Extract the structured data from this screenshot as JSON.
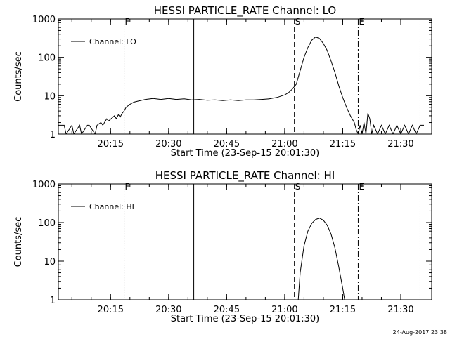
{
  "footer_stamp": "24-Aug-2017 23:38",
  "chart_data": [
    {
      "type": "line",
      "title": "HESSI PARTICLE_RATE Channel: LO",
      "xlabel": "Start Time (23-Sep-15 20:01:30)",
      "ylabel": "Counts/sec",
      "y_scale": "log",
      "xlim": [
        "20:01:30",
        "21:38:00"
      ],
      "ylim": [
        1,
        1000
      ],
      "x_ticks": [
        "20:15",
        "20:30",
        "20:45",
        "21:00",
        "21:15",
        "21:30"
      ],
      "y_ticks": [
        "1",
        "10",
        "100",
        "1000"
      ],
      "legend": {
        "label": "Channel: LO",
        "placement": "top-left"
      },
      "markers": [
        {
          "label": "F",
          "time": "20:18:30",
          "style": "dotted"
        },
        {
          "label": "",
          "time": "20:36:30",
          "style": "solid"
        },
        {
          "label": "S",
          "time": "21:02:30",
          "style": "dashed"
        },
        {
          "label": "E",
          "time": "21:19:00",
          "style": "dash-dot"
        },
        {
          "label": "",
          "time": "21:35:00",
          "style": "dotted"
        }
      ],
      "series": [
        {
          "name": "Channel: LO",
          "x": [
            "20:01:30",
            "20:03:00",
            "20:03:30",
            "20:05:00",
            "20:05:30",
            "20:07:00",
            "20:07:30",
            "20:09:00",
            "20:09:30",
            "20:11:00",
            "20:11:30",
            "20:12:30",
            "20:13:00",
            "20:14:00",
            "20:14:30",
            "20:16:00",
            "20:16:30",
            "20:17:00",
            "20:17:30",
            "20:18:00",
            "20:18:30",
            "20:19:00",
            "20:20:00",
            "20:21:00",
            "20:22:00",
            "20:24:00",
            "20:26:00",
            "20:28:00",
            "20:30:00",
            "20:32:00",
            "20:34:00",
            "20:36:00",
            "20:38:00",
            "20:40:00",
            "20:42:00",
            "20:44:00",
            "20:46:00",
            "20:48:00",
            "20:50:00",
            "20:52:00",
            "20:54:00",
            "20:56:00",
            "20:58:00",
            "21:00:00",
            "21:01:00",
            "21:02:00",
            "21:03:00",
            "21:04:00",
            "21:05:00",
            "21:06:00",
            "21:07:00",
            "21:08:00",
            "21:09:00",
            "21:10:00",
            "21:11:00",
            "21:12:00",
            "21:13:00",
            "21:14:00",
            "21:15:00",
            "21:16:00",
            "21:17:00",
            "21:18:00",
            "21:18:30",
            "21:19:00",
            "21:19:30",
            "21:20:00",
            "21:20:30",
            "21:21:00",
            "21:21:30",
            "21:22:00",
            "21:22:30",
            "21:23:00",
            "21:24:00",
            "21:25:00",
            "21:26:00",
            "21:27:00",
            "21:28:00",
            "21:29:00",
            "21:30:00",
            "21:31:00",
            "21:32:00",
            "21:33:00",
            "21:34:00",
            "21:35:00",
            "21:36:00"
          ],
          "y": [
            1.7,
            1.7,
            1.0,
            1.7,
            1.0,
            1.7,
            1.0,
            1.7,
            1.7,
            1.0,
            1.7,
            2.0,
            1.7,
            2.5,
            2.2,
            3.0,
            2.5,
            3.2,
            2.8,
            3.5,
            4.0,
            5.0,
            6.0,
            6.8,
            7.2,
            8.0,
            8.5,
            8.0,
            8.5,
            8.0,
            8.3,
            7.8,
            8.0,
            7.6,
            7.8,
            7.5,
            7.8,
            7.5,
            7.8,
            7.8,
            8.0,
            8.3,
            9.0,
            10.5,
            12.0,
            15.0,
            20.0,
            45.0,
            100.0,
            180.0,
            280.0,
            340.0,
            310.0,
            230.0,
            150.0,
            80.0,
            40.0,
            18.0,
            9.0,
            5.0,
            3.0,
            2.0,
            1.3,
            1.0,
            1.7,
            1.0,
            2.0,
            1.0,
            3.5,
            2.5,
            1.0,
            1.7,
            1.0,
            1.7,
            1.0,
            1.7,
            1.0,
            1.7,
            1.0,
            1.7,
            1.0,
            1.7,
            1.0,
            1.7,
            1.7
          ]
        }
      ]
    },
    {
      "type": "line",
      "title": "HESSI PARTICLE_RATE Channel: HI",
      "xlabel": "Start Time (23-Sep-15 20:01:30)",
      "ylabel": "Counts/sec",
      "y_scale": "log",
      "xlim": [
        "20:01:30",
        "21:38:00"
      ],
      "ylim": [
        1,
        1000
      ],
      "x_ticks": [
        "20:15",
        "20:30",
        "20:45",
        "21:00",
        "21:15",
        "21:30"
      ],
      "y_ticks": [
        "1",
        "10",
        "100",
        "1000"
      ],
      "legend": {
        "label": "Channel: HI",
        "placement": "top-left"
      },
      "markers": [
        {
          "label": "F",
          "time": "20:18:30",
          "style": "dotted"
        },
        {
          "label": "",
          "time": "20:36:30",
          "style": "solid"
        },
        {
          "label": "S",
          "time": "21:02:30",
          "style": "dashed"
        },
        {
          "label": "E",
          "time": "21:19:00",
          "style": "dash-dot"
        },
        {
          "label": "",
          "time": "21:35:00",
          "style": "dotted"
        }
      ],
      "series": [
        {
          "name": "Channel: HI",
          "x": [
            "21:03:30",
            "21:04:00",
            "21:05:00",
            "21:06:00",
            "21:07:00",
            "21:08:00",
            "21:09:00",
            "21:10:00",
            "21:11:00",
            "21:12:00",
            "21:13:00",
            "21:14:00",
            "21:15:00",
            "21:15:30"
          ],
          "y": [
            1.0,
            5.0,
            25.0,
            60.0,
            95.0,
            120.0,
            130.0,
            115.0,
            85.0,
            50.0,
            22.0,
            7.0,
            2.0,
            1.0
          ]
        }
      ]
    }
  ]
}
